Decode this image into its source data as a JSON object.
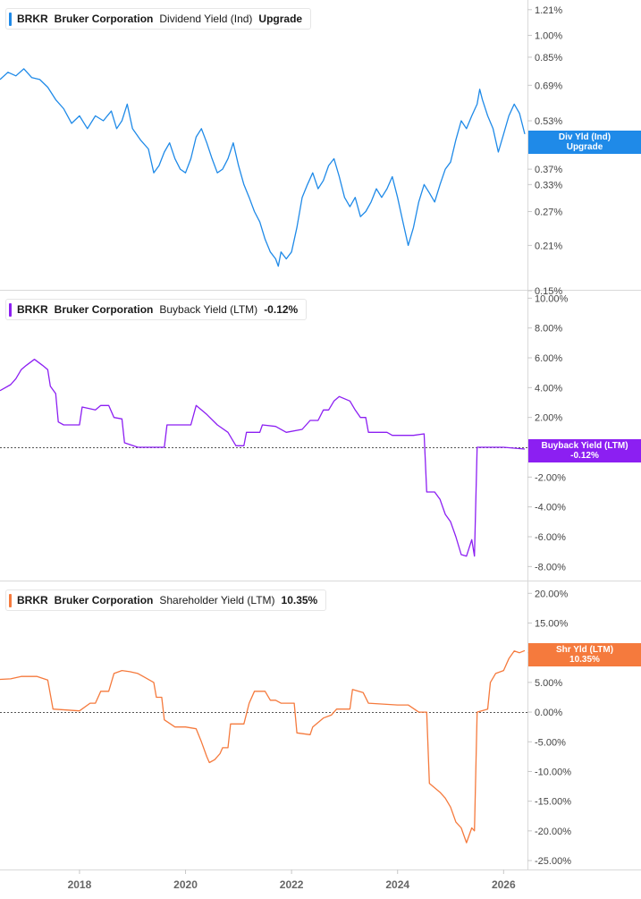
{
  "x_axis": {
    "ticks": [
      "2018",
      "2020",
      "2022",
      "2024",
      "2026"
    ]
  },
  "colors": {
    "div": "#1f8ae8",
    "buyback": "#8c1ff2",
    "shareholder": "#f57a3d"
  },
  "panels": [
    {
      "id": "div",
      "legend": {
        "ticker": "BRKR",
        "company": "Bruker Corporation",
        "metric": "Dividend Yield (Ind)",
        "value": "Upgrade"
      },
      "badge": {
        "line1": "Div Yld (Ind)",
        "line2": "Upgrade"
      },
      "y_ticks": [
        "1.21%",
        "1.00%",
        "0.85%",
        "0.69%",
        "0.53%",
        "0.37%",
        "0.33%",
        "0.27%",
        "0.21%",
        "0.15%"
      ]
    },
    {
      "id": "buyback",
      "legend": {
        "ticker": "BRKR",
        "company": "Bruker Corporation",
        "metric": "Buyback Yield (LTM)",
        "value": "-0.12%"
      },
      "badge": {
        "line1": "Buyback Yield (LTM)",
        "line2": "-0.12%"
      },
      "y_ticks": [
        "10.00%",
        "8.00%",
        "6.00%",
        "4.00%",
        "2.00%",
        "-2.00%",
        "-4.00%",
        "-6.00%",
        "-8.00%"
      ]
    },
    {
      "id": "shareholder",
      "legend": {
        "ticker": "BRKR",
        "company": "Bruker Corporation",
        "metric": "Shareholder Yield (LTM)",
        "value": "10.35%"
      },
      "badge": {
        "line1": "Shr Yld (LTM)",
        "line2": "10.35%"
      },
      "y_ticks": [
        "20.00%",
        "15.00%",
        "10.00%",
        "5.00%",
        "0.00%",
        "-5.00%",
        "-10.00%",
        "-15.00%",
        "-20.00%",
        "-25.00%"
      ]
    }
  ],
  "chart_data": [
    {
      "type": "line",
      "x_range": [
        2016.5,
        2026.45
      ],
      "y_scale": "log",
      "ylim": [
        0.15,
        1.3
      ],
      "series": [
        {
          "values": [
            [
              2016.5,
              0.72
            ],
            [
              2016.65,
              0.76
            ],
            [
              2016.8,
              0.74
            ],
            [
              2016.95,
              0.78
            ],
            [
              2017.1,
              0.73
            ],
            [
              2017.25,
              0.72
            ],
            [
              2017.4,
              0.68
            ],
            [
              2017.55,
              0.62
            ],
            [
              2017.7,
              0.58
            ],
            [
              2017.85,
              0.52
            ],
            [
              2018.0,
              0.55
            ],
            [
              2018.15,
              0.5
            ],
            [
              2018.3,
              0.55
            ],
            [
              2018.45,
              0.53
            ],
            [
              2018.6,
              0.57
            ],
            [
              2018.7,
              0.5
            ],
            [
              2018.8,
              0.53
            ],
            [
              2018.9,
              0.6
            ],
            [
              2019.0,
              0.5
            ],
            [
              2019.15,
              0.46
            ],
            [
              2019.3,
              0.43
            ],
            [
              2019.4,
              0.36
            ],
            [
              2019.5,
              0.38
            ],
            [
              2019.6,
              0.42
            ],
            [
              2019.7,
              0.45
            ],
            [
              2019.8,
              0.4
            ],
            [
              2019.9,
              0.37
            ],
            [
              2020.0,
              0.36
            ],
            [
              2020.1,
              0.4
            ],
            [
              2020.2,
              0.47
            ],
            [
              2020.3,
              0.5
            ],
            [
              2020.4,
              0.45
            ],
            [
              2020.5,
              0.4
            ],
            [
              2020.6,
              0.36
            ],
            [
              2020.7,
              0.37
            ],
            [
              2020.8,
              0.4
            ],
            [
              2020.9,
              0.45
            ],
            [
              2021.0,
              0.38
            ],
            [
              2021.1,
              0.33
            ],
            [
              2021.2,
              0.3
            ],
            [
              2021.3,
              0.27
            ],
            [
              2021.4,
              0.25
            ],
            [
              2021.5,
              0.22
            ],
            [
              2021.6,
              0.2
            ],
            [
              2021.7,
              0.19
            ],
            [
              2021.75,
              0.18
            ],
            [
              2021.8,
              0.2
            ],
            [
              2021.9,
              0.19
            ],
            [
              2022.0,
              0.2
            ],
            [
              2022.1,
              0.24
            ],
            [
              2022.2,
              0.3
            ],
            [
              2022.3,
              0.33
            ],
            [
              2022.4,
              0.36
            ],
            [
              2022.5,
              0.32
            ],
            [
              2022.6,
              0.34
            ],
            [
              2022.7,
              0.38
            ],
            [
              2022.8,
              0.4
            ],
            [
              2022.9,
              0.35
            ],
            [
              2023.0,
              0.3
            ],
            [
              2023.1,
              0.28
            ],
            [
              2023.2,
              0.3
            ],
            [
              2023.3,
              0.26
            ],
            [
              2023.4,
              0.27
            ],
            [
              2023.5,
              0.29
            ],
            [
              2023.6,
              0.32
            ],
            [
              2023.7,
              0.3
            ],
            [
              2023.8,
              0.32
            ],
            [
              2023.9,
              0.35
            ],
            [
              2024.0,
              0.3
            ],
            [
              2024.1,
              0.25
            ],
            [
              2024.2,
              0.21
            ],
            [
              2024.3,
              0.24
            ],
            [
              2024.4,
              0.29
            ],
            [
              2024.5,
              0.33
            ],
            [
              2024.6,
              0.31
            ],
            [
              2024.7,
              0.29
            ],
            [
              2024.8,
              0.33
            ],
            [
              2024.9,
              0.37
            ],
            [
              2025.0,
              0.39
            ],
            [
              2025.1,
              0.46
            ],
            [
              2025.2,
              0.53
            ],
            [
              2025.3,
              0.5
            ],
            [
              2025.4,
              0.55
            ],
            [
              2025.5,
              0.6
            ],
            [
              2025.55,
              0.67
            ],
            [
              2025.6,
              0.62
            ],
            [
              2025.7,
              0.55
            ],
            [
              2025.8,
              0.5
            ],
            [
              2025.9,
              0.42
            ],
            [
              2026.0,
              0.48
            ],
            [
              2026.1,
              0.55
            ],
            [
              2026.2,
              0.6
            ],
            [
              2026.3,
              0.56
            ],
            [
              2026.4,
              0.48
            ]
          ]
        }
      ]
    },
    {
      "type": "line",
      "x_range": [
        2016.5,
        2026.45
      ],
      "y_scale": "linear",
      "ylim": [
        -9.0,
        10.5
      ],
      "series": [
        {
          "values": [
            [
              2016.5,
              3.8
            ],
            [
              2016.7,
              4.2
            ],
            [
              2016.8,
              4.6
            ],
            [
              2016.9,
              5.2
            ],
            [
              2017.0,
              5.5
            ],
            [
              2017.15,
              5.9
            ],
            [
              2017.3,
              5.5
            ],
            [
              2017.4,
              5.2
            ],
            [
              2017.45,
              4.1
            ],
            [
              2017.55,
              3.6
            ],
            [
              2017.6,
              1.7
            ],
            [
              2017.7,
              1.5
            ],
            [
              2018.0,
              1.5
            ],
            [
              2018.05,
              2.7
            ],
            [
              2018.3,
              2.5
            ],
            [
              2018.4,
              2.8
            ],
            [
              2018.55,
              2.8
            ],
            [
              2018.65,
              2.0
            ],
            [
              2018.8,
              1.9
            ],
            [
              2018.85,
              0.3
            ],
            [
              2019.1,
              0.0
            ],
            [
              2019.6,
              0.0
            ],
            [
              2019.65,
              1.5
            ],
            [
              2020.1,
              1.5
            ],
            [
              2020.2,
              2.8
            ],
            [
              2020.4,
              2.2
            ],
            [
              2020.6,
              1.5
            ],
            [
              2020.8,
              1.0
            ],
            [
              2020.95,
              0.1
            ],
            [
              2021.1,
              0.1
            ],
            [
              2021.15,
              1.0
            ],
            [
              2021.4,
              1.0
            ],
            [
              2021.45,
              1.5
            ],
            [
              2021.7,
              1.4
            ],
            [
              2021.9,
              1.0
            ],
            [
              2022.2,
              1.2
            ],
            [
              2022.35,
              1.8
            ],
            [
              2022.5,
              1.8
            ],
            [
              2022.6,
              2.5
            ],
            [
              2022.7,
              2.5
            ],
            [
              2022.8,
              3.1
            ],
            [
              2022.9,
              3.4
            ],
            [
              2023.1,
              3.1
            ],
            [
              2023.2,
              2.5
            ],
            [
              2023.3,
              2.0
            ],
            [
              2023.4,
              2.0
            ],
            [
              2023.45,
              1.0
            ],
            [
              2023.8,
              1.0
            ],
            [
              2023.9,
              0.8
            ],
            [
              2024.3,
              0.8
            ],
            [
              2024.5,
              0.9
            ],
            [
              2024.55,
              -3.0
            ],
            [
              2024.7,
              -3.0
            ],
            [
              2024.8,
              -3.5
            ],
            [
              2024.9,
              -4.5
            ],
            [
              2025.0,
              -5.0
            ],
            [
              2025.1,
              -6.0
            ],
            [
              2025.2,
              -7.2
            ],
            [
              2025.3,
              -7.3
            ],
            [
              2025.4,
              -6.2
            ],
            [
              2025.45,
              -7.3
            ],
            [
              2025.5,
              0.0
            ],
            [
              2026.0,
              0.0
            ],
            [
              2026.4,
              -0.12
            ]
          ]
        }
      ]
    },
    {
      "type": "line",
      "x_range": [
        2016.5,
        2026.45
      ],
      "y_scale": "linear",
      "ylim": [
        -26.5,
        22
      ],
      "series": [
        {
          "values": [
            [
              2016.5,
              5.5
            ],
            [
              2016.7,
              5.6
            ],
            [
              2016.9,
              6.0
            ],
            [
              2017.2,
              6.0
            ],
            [
              2017.4,
              5.4
            ],
            [
              2017.5,
              0.5
            ],
            [
              2018.0,
              0.2
            ],
            [
              2018.2,
              1.5
            ],
            [
              2018.3,
              1.5
            ],
            [
              2018.4,
              3.5
            ],
            [
              2018.55,
              3.5
            ],
            [
              2018.65,
              6.5
            ],
            [
              2018.8,
              7.0
            ],
            [
              2018.95,
              6.8
            ],
            [
              2019.1,
              6.5
            ],
            [
              2019.2,
              6.0
            ],
            [
              2019.4,
              5.0
            ],
            [
              2019.45,
              2.5
            ],
            [
              2019.55,
              2.5
            ],
            [
              2019.6,
              -1.3
            ],
            [
              2019.8,
              -2.5
            ],
            [
              2020.0,
              -2.5
            ],
            [
              2020.2,
              -2.8
            ],
            [
              2020.3,
              -5.0
            ],
            [
              2020.4,
              -7.5
            ],
            [
              2020.45,
              -8.5
            ],
            [
              2020.55,
              -8.0
            ],
            [
              2020.65,
              -7.0
            ],
            [
              2020.7,
              -6.0
            ],
            [
              2020.8,
              -6.0
            ],
            [
              2020.85,
              -2.0
            ],
            [
              2021.1,
              -2.0
            ],
            [
              2021.2,
              1.5
            ],
            [
              2021.3,
              3.5
            ],
            [
              2021.5,
              3.5
            ],
            [
              2021.6,
              2.0
            ],
            [
              2021.7,
              2.0
            ],
            [
              2021.8,
              1.5
            ],
            [
              2022.05,
              1.5
            ],
            [
              2022.1,
              -3.5
            ],
            [
              2022.35,
              -3.8
            ],
            [
              2022.4,
              -2.5
            ],
            [
              2022.6,
              -1.0
            ],
            [
              2022.75,
              -0.5
            ],
            [
              2022.85,
              0.5
            ],
            [
              2023.1,
              0.5
            ],
            [
              2023.15,
              3.8
            ],
            [
              2023.35,
              3.3
            ],
            [
              2023.45,
              1.5
            ],
            [
              2024.0,
              1.2
            ],
            [
              2024.2,
              1.2
            ],
            [
              2024.4,
              0.0
            ],
            [
              2024.55,
              0.0
            ],
            [
              2024.6,
              -12.0
            ],
            [
              2024.8,
              -13.5
            ],
            [
              2024.9,
              -14.5
            ],
            [
              2025.0,
              -16.0
            ],
            [
              2025.1,
              -18.5
            ],
            [
              2025.2,
              -19.5
            ],
            [
              2025.3,
              -22.0
            ],
            [
              2025.4,
              -19.5
            ],
            [
              2025.45,
              -20.0
            ],
            [
              2025.5,
              0.0
            ],
            [
              2025.7,
              0.5
            ],
            [
              2025.75,
              5.0
            ],
            [
              2025.85,
              6.5
            ],
            [
              2026.0,
              7.0
            ],
            [
              2026.1,
              9.0
            ],
            [
              2026.2,
              10.3
            ],
            [
              2026.3,
              10.0
            ],
            [
              2026.4,
              10.35
            ]
          ]
        }
      ]
    }
  ]
}
